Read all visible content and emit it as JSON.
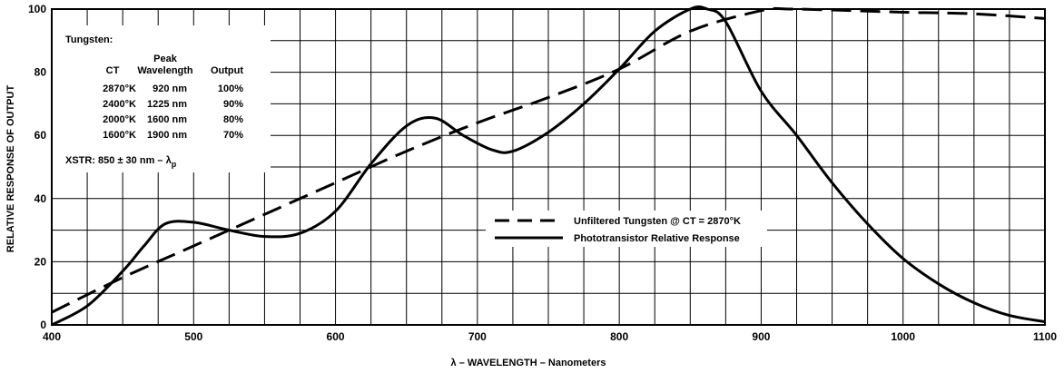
{
  "chart_data": {
    "type": "line",
    "xlabel": "λ – WAVELENGTH – Nanometers",
    "ylabel": "RELATIVE RESPONSE OF OUTPUT",
    "xlim": [
      400,
      1100
    ],
    "ylim": [
      0,
      100
    ],
    "x_ticks": [
      400,
      500,
      600,
      700,
      800,
      900,
      1000,
      1100
    ],
    "y_ticks": [
      0,
      20,
      40,
      60,
      80,
      100
    ],
    "x_grid_step": 25,
    "y_grid_step": 10,
    "grid": true,
    "legend_position": "center-right",
    "series": [
      {
        "name": "Unfiltered Tungsten @ CT = 2870°K",
        "style": "dashed",
        "x": [
          400,
          450,
          500,
          550,
          600,
          650,
          700,
          750,
          800,
          850,
          900,
          920,
          950,
          1000,
          1050,
          1100
        ],
        "y": [
          4,
          15,
          25,
          35,
          45,
          55,
          64,
          72,
          81,
          93,
          99.5,
          100,
          99.7,
          99,
          98.5,
          97
        ]
      },
      {
        "name": "Phototransistor Relative Response",
        "style": "solid",
        "x": [
          400,
          425,
          450,
          465,
          480,
          500,
          525,
          550,
          575,
          600,
          625,
          650,
          670,
          690,
          710,
          725,
          750,
          775,
          800,
          825,
          850,
          862,
          875,
          900,
          925,
          950,
          975,
          1000,
          1025,
          1050,
          1075,
          1100
        ],
        "y": [
          0,
          6,
          17,
          25,
          32,
          32.5,
          30,
          28,
          29,
          36,
          51,
          63,
          65.5,
          60,
          55.5,
          55,
          61,
          70,
          81,
          93,
          100,
          100,
          96,
          74,
          60,
          45,
          32,
          21,
          13,
          7,
          3,
          1
        ]
      }
    ],
    "annotation_table": {
      "heading": "Tungsten:",
      "col_headers": [
        [
          "",
          "CT"
        ],
        [
          "Peak",
          "Wavelength"
        ],
        [
          "",
          "Output"
        ]
      ],
      "rows": [
        [
          "2870°K",
          "920 nm",
          "100%"
        ],
        [
          "2400°K",
          "1225 nm",
          "90%"
        ],
        [
          "2000°K",
          "1600 nm",
          "80%"
        ],
        [
          "1600°K",
          "1900 nm",
          "70%"
        ]
      ],
      "footnote": "XSTR: 850 ± 30 nm – λ",
      "footnote_sub": "p"
    }
  }
}
